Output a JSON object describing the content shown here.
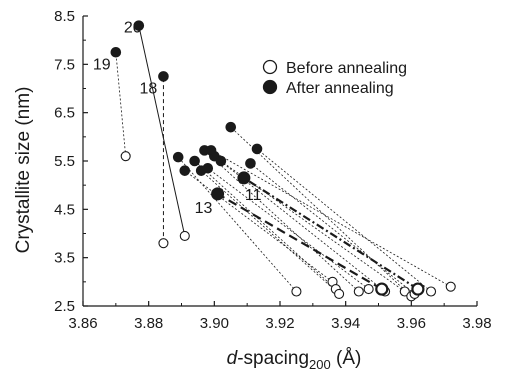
{
  "chart_data": {
    "type": "scatter",
    "xlabel_italic": "d",
    "xlabel_rest": "-spacing",
    "xlabel_sub": "200",
    "xlabel_unit": " (Å)",
    "ylabel": "Crystallite size (nm)",
    "xlim": [
      3.86,
      3.98
    ],
    "ylim": [
      2.5,
      8.5
    ],
    "x_ticks": [
      "3.86",
      "3.88",
      "3.90",
      "3.92",
      "3.94",
      "3.96",
      "3.98"
    ],
    "y_ticks": [
      "2.5",
      "3.5",
      "4.5",
      "5.5",
      "6.5",
      "7.5",
      "8.5"
    ],
    "grid": false,
    "legend": {
      "position": "top-right",
      "entries": [
        "Before annealing",
        "After annealing"
      ]
    },
    "pairs": [
      {
        "label": "19",
        "before": [
          3.873,
          5.6
        ],
        "after": [
          3.87,
          7.75
        ],
        "style": "dotted"
      },
      {
        "label": "20",
        "before": [
          3.891,
          3.95
        ],
        "after": [
          3.877,
          8.3
        ],
        "style": "solid"
      },
      {
        "label": "18",
        "before": [
          3.8845,
          3.8
        ],
        "after": [
          3.8845,
          7.25
        ],
        "style": "dashed"
      },
      {
        "label": "",
        "before": [
          3.925,
          2.8
        ],
        "after": [
          3.889,
          5.58
        ],
        "style": "dotted"
      },
      {
        "label": "",
        "before": [
          3.936,
          3.0
        ],
        "after": [
          3.891,
          5.3
        ],
        "style": "dotted"
      },
      {
        "label": "",
        "before": [
          3.937,
          2.85
        ],
        "after": [
          3.894,
          5.5
        ],
        "style": "dotted"
      },
      {
        "label": "",
        "before": [
          3.938,
          2.75
        ],
        "after": [
          3.896,
          5.3
        ],
        "style": "dotted"
      },
      {
        "label": "",
        "before": [
          3.944,
          2.8
        ],
        "after": [
          3.897,
          5.72
        ],
        "style": "dotted"
      },
      {
        "label": "",
        "before": [
          3.947,
          2.85
        ],
        "after": [
          3.898,
          5.35
        ],
        "style": "dotted"
      },
      {
        "label": "",
        "before": [
          3.952,
          2.8
        ],
        "after": [
          3.9,
          5.6
        ],
        "style": "dotted"
      },
      {
        "label": "",
        "before": [
          3.958,
          2.8
        ],
        "after": [
          3.902,
          5.5
        ],
        "style": "dotted"
      },
      {
        "label": "",
        "before": [
          3.96,
          2.7
        ],
        "after": [
          3.905,
          6.2
        ],
        "style": "dotted"
      },
      {
        "label": "",
        "before": [
          3.961,
          2.75
        ],
        "after": [
          3.911,
          5.45
        ],
        "style": "dotted"
      },
      {
        "label": "",
        "before": [
          3.966,
          2.8
        ],
        "after": [
          3.913,
          5.75
        ],
        "style": "dotted"
      },
      {
        "label": "",
        "before": [
          3.972,
          2.9
        ],
        "after": [
          3.899,
          5.72
        ],
        "style": "dotted"
      },
      {
        "label": "13",
        "before": [
          3.951,
          2.85
        ],
        "after": [
          3.901,
          4.82
        ],
        "style": "dashed",
        "emphasis": true
      },
      {
        "label": "11",
        "before": [
          3.962,
          2.85
        ],
        "after": [
          3.909,
          5.15
        ],
        "style": "dashdot",
        "emphasis": true
      }
    ]
  }
}
